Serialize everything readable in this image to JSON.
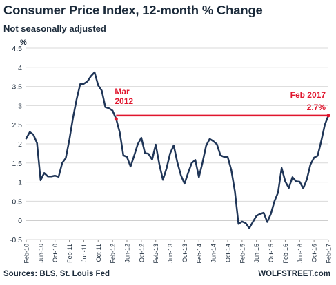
{
  "title": "Consumer Price Index, 12-month % Change",
  "subtitle": "Not seasonally adjusted",
  "source": "Sources: BLS, St. Louis Fed",
  "brand": "WOLFSTREET.com",
  "colors": {
    "line": "#1f3557",
    "highlight": "#e0152d",
    "grid": "#d9d9d9",
    "text": "#1b2a3a"
  },
  "chart_data": {
    "type": "line",
    "title": "Consumer Price Index, 12-month % Change",
    "subtitle": "Not seasonally adjusted",
    "ylabel": "%",
    "ylim": [
      -0.5,
      4.5
    ],
    "yticks": [
      "-0.5",
      "0",
      "0.5",
      "1",
      "1.5",
      "2",
      "2.5",
      "3",
      "3.5",
      "4",
      "4.5"
    ],
    "grid": "horizontal",
    "tick_labels": [
      {
        "label": "Feb-10",
        "i": 0
      },
      {
        "label": "Jun-10",
        "i": 4
      },
      {
        "label": "Oct-10",
        "i": 8
      },
      {
        "label": "Feb-11",
        "i": 12
      },
      {
        "label": "Jun-11",
        "i": 16
      },
      {
        "label": "Oct-11",
        "i": 20
      },
      {
        "label": "Feb-12",
        "i": 24
      },
      {
        "label": "Jun-12",
        "i": 28
      },
      {
        "label": "Oct-12",
        "i": 32
      },
      {
        "label": "Feb-13",
        "i": 36
      },
      {
        "label": "Jun-13",
        "i": 40
      },
      {
        "label": "Oct-13",
        "i": 44
      },
      {
        "label": "Feb-14",
        "i": 48
      },
      {
        "label": "Jun-14",
        "i": 52
      },
      {
        "label": "Oct-14",
        "i": 56
      },
      {
        "label": "Feb-15",
        "i": 60
      },
      {
        "label": "Jun-15",
        "i": 64
      },
      {
        "label": "Oct-15",
        "i": 68
      },
      {
        "label": "Feb-16",
        "i": 72
      },
      {
        "label": "Jun-16",
        "i": 76
      },
      {
        "label": "Oct-16",
        "i": 80
      },
      {
        "label": "Feb-17",
        "i": 84
      }
    ],
    "series": [
      {
        "values": [
          2.14,
          2.31,
          2.24,
          2.02,
          1.05,
          1.24,
          1.15,
          1.15,
          1.17,
          1.14,
          1.5,
          1.63,
          2.11,
          2.68,
          3.16,
          3.56,
          3.57,
          3.63,
          3.77,
          3.87,
          3.53,
          3.39,
          2.96,
          2.93,
          2.87,
          2.65,
          2.3,
          1.7,
          1.66,
          1.41,
          1.69,
          1.99,
          2.16,
          1.76,
          1.74,
          1.59,
          1.98,
          1.47,
          1.06,
          1.36,
          1.75,
          1.96,
          1.52,
          1.18,
          0.96,
          1.24,
          1.5,
          1.58,
          1.13,
          1.51,
          1.95,
          2.13,
          2.07,
          1.99,
          1.7,
          1.66,
          1.66,
          1.32,
          0.76,
          -0.09,
          -0.03,
          -0.07,
          -0.2,
          -0.04,
          0.12,
          0.17,
          0.2,
          -0.04,
          0.17,
          0.5,
          0.73,
          1.37,
          1.02,
          0.85,
          1.13,
          1.02,
          1.01,
          0.84,
          1.07,
          1.46,
          1.64,
          1.69,
          2.07,
          2.5,
          2.74
        ]
      }
    ],
    "annotations": [
      {
        "text": [
          "Mar",
          "2012"
        ],
        "i": 25
      },
      {
        "text": [
          "Feb 2017",
          "2.7%"
        ],
        "i": 84
      }
    ],
    "reference_line": {
      "from_i": 25,
      "to_i": 84,
      "value": 2.74
    }
  }
}
